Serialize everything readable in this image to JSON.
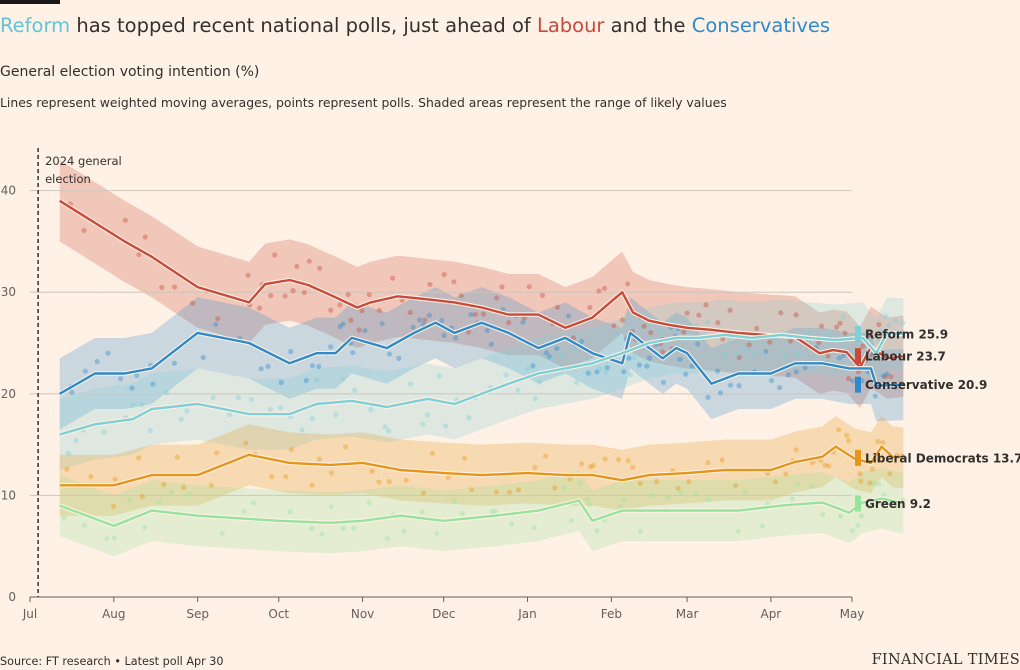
{
  "header": {
    "title_parts": [
      {
        "text": "Reform",
        "color": "#5ec6d8"
      },
      {
        "text": " has topped recent national polls, just ahead of ",
        "color": "#33302e"
      },
      {
        "text": "Labour",
        "color": "#c94a3a"
      },
      {
        "text": " and the ",
        "color": "#33302e"
      },
      {
        "text": "Conservatives",
        "color": "#2d8bcc"
      }
    ],
    "subtitle": "General election voting intention (%)",
    "note": "Lines represent weighted moving averages, points represent polls. Shaded areas represent the range of likely values"
  },
  "footer": {
    "source": "Source: FT research • Latest poll Apr 30",
    "brand": "FINANCIAL TIMES"
  },
  "chart_data": {
    "type": "line",
    "x_ticks": [
      "Jul",
      "Aug",
      "Sep",
      "Oct",
      "Nov",
      "Dec",
      "Jan",
      "Feb",
      "Mar",
      "Apr",
      "May"
    ],
    "x_tick_dates": [
      "2024-07-01",
      "2024-08-01",
      "2024-09-01",
      "2024-10-01",
      "2024-11-01",
      "2024-12-01",
      "2025-01-01",
      "2025-02-01",
      "2025-03-01",
      "2025-04-01",
      "2025-05-01"
    ],
    "ylim": [
      0,
      44
    ],
    "y_ticks": [
      0,
      10,
      20,
      30,
      40
    ],
    "grid": "horizontal",
    "annotation": {
      "date": "2024-07-04",
      "lines": [
        "2024 general",
        "election"
      ]
    },
    "legend_placement": "right",
    "series": [
      {
        "name": "Labour",
        "legend": "Labour 23.7",
        "color": "#c94a3a",
        "band": 4.0,
        "points": [
          [
            "2024-07-12",
            39
          ],
          [
            "2024-08-05",
            35
          ],
          [
            "2024-08-15",
            33.5
          ],
          [
            "2024-09-01",
            30.5
          ],
          [
            "2024-09-20",
            29
          ],
          [
            "2024-09-26",
            30.8
          ],
          [
            "2024-10-05",
            31.2
          ],
          [
            "2024-10-12",
            30.7
          ],
          [
            "2024-10-22",
            29.5
          ],
          [
            "2024-10-30",
            28.5
          ],
          [
            "2024-11-04",
            29
          ],
          [
            "2024-11-14",
            29.6
          ],
          [
            "2024-11-25",
            29.3
          ],
          [
            "2024-12-05",
            29
          ],
          [
            "2024-12-15",
            28.5
          ],
          [
            "2024-12-25",
            27.8
          ],
          [
            "2025-01-05",
            27.8
          ],
          [
            "2025-01-15",
            26.5
          ],
          [
            "2025-01-25",
            27.5
          ],
          [
            "2025-02-05",
            30
          ],
          [
            "2025-02-09",
            28
          ],
          [
            "2025-02-15",
            27.2
          ],
          [
            "2025-02-22",
            26.8
          ],
          [
            "2025-03-01",
            26.5
          ],
          [
            "2025-03-10",
            26.3
          ],
          [
            "2025-03-20",
            26
          ],
          [
            "2025-03-30",
            25.8
          ],
          [
            "2025-04-10",
            25.6
          ],
          [
            "2025-04-19",
            24
          ],
          [
            "2025-04-24",
            24.3
          ],
          [
            "2025-04-29",
            24.1
          ],
          [
            "2025-05-04",
            22.6
          ],
          [
            "2025-05-08",
            24.6
          ],
          [
            "2025-05-14",
            23.5
          ],
          [
            "2025-05-20",
            23.7
          ]
        ]
      },
      {
        "name": "Conservative",
        "legend": "Conservative 20.9",
        "color": "#2d8bcc",
        "band": 3.5,
        "points": [
          [
            "2024-07-12",
            20
          ],
          [
            "2024-07-25",
            22
          ],
          [
            "2024-08-05",
            22
          ],
          [
            "2024-08-15",
            22.5
          ],
          [
            "2024-09-01",
            26
          ],
          [
            "2024-09-20",
            25
          ],
          [
            "2024-10-05",
            23
          ],
          [
            "2024-10-15",
            24
          ],
          [
            "2024-10-22",
            24
          ],
          [
            "2024-10-28",
            25.5
          ],
          [
            "2024-11-10",
            24.5
          ],
          [
            "2024-11-20",
            26
          ],
          [
            "2024-11-28",
            27
          ],
          [
            "2024-12-05",
            26
          ],
          [
            "2024-12-15",
            27
          ],
          [
            "2024-12-25",
            26
          ],
          [
            "2025-01-05",
            24.5
          ],
          [
            "2025-01-15",
            25.5
          ],
          [
            "2025-01-25",
            24
          ],
          [
            "2025-02-05",
            23
          ],
          [
            "2025-02-08",
            26
          ],
          [
            "2025-02-15",
            24.5
          ],
          [
            "2025-02-20",
            23.5
          ],
          [
            "2025-02-25",
            24.5
          ],
          [
            "2025-03-01",
            24
          ],
          [
            "2025-03-10",
            21
          ],
          [
            "2025-03-20",
            22
          ],
          [
            "2025-04-01",
            22
          ],
          [
            "2025-04-10",
            23
          ],
          [
            "2025-04-20",
            23
          ],
          [
            "2025-04-30",
            22.5
          ],
          [
            "2025-05-08",
            22.5
          ],
          [
            "2025-05-10",
            20.8
          ],
          [
            "2025-05-20",
            20.9
          ]
        ]
      },
      {
        "name": "Reform",
        "legend": "Reform 25.9",
        "color": "#7dcfd8",
        "band": 3.5,
        "points": [
          [
            "2024-07-12",
            16
          ],
          [
            "2024-07-25",
            17
          ],
          [
            "2024-08-08",
            17.5
          ],
          [
            "2024-08-15",
            18.5
          ],
          [
            "2024-09-01",
            19
          ],
          [
            "2024-09-20",
            18
          ],
          [
            "2024-10-05",
            18
          ],
          [
            "2024-10-15",
            19
          ],
          [
            "2024-10-28",
            19.3
          ],
          [
            "2024-11-10",
            18.7
          ],
          [
            "2024-11-25",
            19.5
          ],
          [
            "2024-12-05",
            19
          ],
          [
            "2024-12-15",
            20
          ],
          [
            "2024-12-25",
            21
          ],
          [
            "2025-01-05",
            22
          ],
          [
            "2025-01-15",
            22.5
          ],
          [
            "2025-01-25",
            23
          ],
          [
            "2025-02-05",
            24
          ],
          [
            "2025-02-15",
            25
          ],
          [
            "2025-02-25",
            25.5
          ],
          [
            "2025-03-05",
            25.5
          ],
          [
            "2025-03-15",
            25.8
          ],
          [
            "2025-03-25",
            25.5
          ],
          [
            "2025-04-05",
            25.8
          ],
          [
            "2025-04-15",
            25.5
          ],
          [
            "2025-04-25",
            25.3
          ],
          [
            "2025-05-05",
            25.5
          ],
          [
            "2025-05-10",
            24
          ],
          [
            "2025-05-14",
            26
          ],
          [
            "2025-05-20",
            25.9
          ]
        ]
      },
      {
        "name": "Liberal Democrats",
        "legend": "Liberal Democrats 13.7",
        "color": "#e5961a",
        "band": 3.0,
        "points": [
          [
            "2024-07-12",
            11
          ],
          [
            "2024-08-01",
            11
          ],
          [
            "2024-08-15",
            12
          ],
          [
            "2024-09-01",
            12
          ],
          [
            "2024-09-20",
            14
          ],
          [
            "2024-10-05",
            13.2
          ],
          [
            "2024-10-20",
            13
          ],
          [
            "2024-11-01",
            13.2
          ],
          [
            "2024-11-15",
            12.5
          ],
          [
            "2024-12-01",
            12.2
          ],
          [
            "2024-12-15",
            12
          ],
          [
            "2025-01-01",
            12.2
          ],
          [
            "2025-01-15",
            12
          ],
          [
            "2025-01-25",
            12
          ],
          [
            "2025-02-05",
            11.5
          ],
          [
            "2025-02-15",
            12
          ],
          [
            "2025-03-01",
            12.2
          ],
          [
            "2025-03-15",
            12.5
          ],
          [
            "2025-04-01",
            12.5
          ],
          [
            "2025-04-10",
            13.3
          ],
          [
            "2025-04-20",
            13.8
          ],
          [
            "2025-04-25",
            14.8
          ],
          [
            "2025-05-02",
            13.6
          ],
          [
            "2025-05-08",
            13.2
          ],
          [
            "2025-05-12",
            14.8
          ],
          [
            "2025-05-16",
            13.8
          ],
          [
            "2025-05-20",
            13.7
          ]
        ]
      },
      {
        "name": "Green",
        "legend": "Green 9.2",
        "color": "#95e39c",
        "band": 3.0,
        "points": [
          [
            "2024-07-12",
            9
          ],
          [
            "2024-08-01",
            7
          ],
          [
            "2024-08-15",
            8.5
          ],
          [
            "2024-09-01",
            8
          ],
          [
            "2024-10-01",
            7.5
          ],
          [
            "2024-10-20",
            7.3
          ],
          [
            "2024-11-01",
            7.5
          ],
          [
            "2024-11-15",
            8
          ],
          [
            "2024-12-01",
            7.5
          ],
          [
            "2024-12-20",
            8
          ],
          [
            "2025-01-05",
            8.5
          ],
          [
            "2025-01-20",
            9.5
          ],
          [
            "2025-01-25",
            7.5
          ],
          [
            "2025-02-05",
            8.5
          ],
          [
            "2025-02-20",
            8.5
          ],
          [
            "2025-03-05",
            8.5
          ],
          [
            "2025-03-20",
            8.5
          ],
          [
            "2025-04-05",
            9
          ],
          [
            "2025-04-20",
            9.3
          ],
          [
            "2025-04-30",
            8.3
          ],
          [
            "2025-05-05",
            9.3
          ],
          [
            "2025-05-12",
            9.7
          ],
          [
            "2025-05-20",
            9.2
          ]
        ]
      }
    ]
  }
}
